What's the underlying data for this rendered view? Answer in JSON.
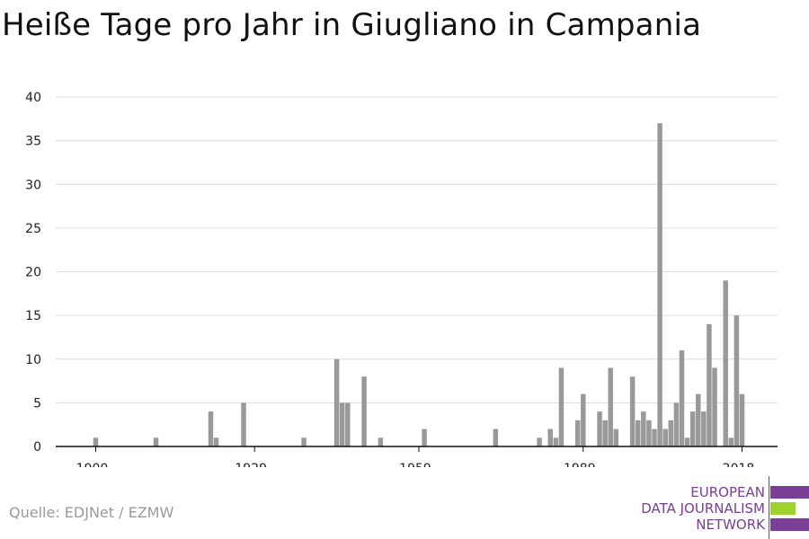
{
  "chart_data": {
    "type": "bar",
    "title": "Heiße Tage pro Jahr in Giugliano in Campania",
    "xlabel": "",
    "ylabel": "",
    "ylim": [
      0,
      40
    ],
    "yticks": [
      0,
      5,
      10,
      15,
      20,
      25,
      30,
      35,
      40
    ],
    "xlim": [
      1894,
      2025
    ],
    "xticks": [
      1900,
      1929,
      1959,
      1989,
      2018
    ],
    "grid": true,
    "bar_color": "#999999",
    "series": [
      {
        "x": [
          1900,
          1911,
          1921,
          1922,
          1927,
          1938,
          1944,
          1945,
          1946,
          1949,
          1952,
          1960,
          1973,
          1981,
          1983,
          1984,
          1985,
          1988,
          1989,
          1992,
          1993,
          1994,
          1995,
          1998,
          1999,
          2000,
          2001,
          2002,
          2003,
          2004,
          2005,
          2006,
          2007,
          2008,
          2009,
          2010,
          2011,
          2012,
          2013,
          2014,
          2015,
          2016,
          2017,
          2018
        ],
        "values": [
          1,
          1,
          4,
          1,
          5,
          1,
          10,
          5,
          5,
          8,
          1,
          2,
          2,
          1,
          2,
          1,
          9,
          3,
          6,
          4,
          3,
          9,
          2,
          8,
          3,
          4,
          3,
          2,
          37,
          2,
          3,
          5,
          11,
          1,
          4,
          6,
          4,
          14,
          9,
          0,
          19,
          1,
          15,
          6
        ]
      }
    ]
  },
  "source": "Quelle: EDJNet / EZMW",
  "logo": {
    "line1": "EUROPEAN",
    "line2": "DATA JOURNALISM",
    "line3": "NETWORK",
    "purple": "#7a3e96",
    "green": "#9ed22f"
  }
}
